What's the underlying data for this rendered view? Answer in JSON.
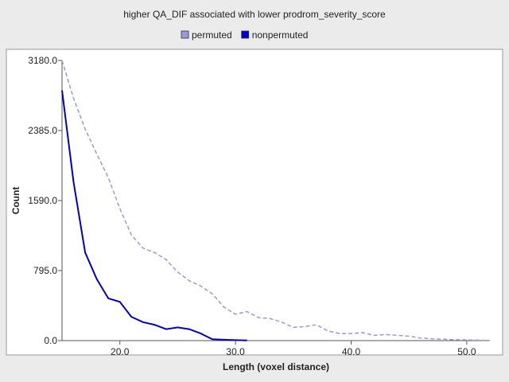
{
  "chart_data": {
    "type": "line",
    "title": "higher QA_DIF associated with lower prodrom_severity_score",
    "xlabel": "Length (voxel distance)",
    "ylabel": "Count",
    "xlim": [
      15,
      52
    ],
    "ylim": [
      0,
      3180
    ],
    "x_ticks": [
      20,
      30,
      40,
      50
    ],
    "x_tick_labels": [
      "20.0",
      "30.0",
      "40.0",
      "50.0"
    ],
    "y_ticks": [
      0,
      795,
      1590,
      2385,
      3180
    ],
    "y_tick_labels": [
      "0.0",
      "795.0",
      "1590.0",
      "2385.0",
      "3180.0"
    ],
    "grid": false,
    "legend_position": "top-center",
    "series": [
      {
        "name": "permuted",
        "color": "#9999dd",
        "line_style": "dashed",
        "x": [
          15,
          16,
          17,
          18,
          19,
          20,
          21,
          22,
          23,
          24,
          25,
          26,
          27,
          28,
          29,
          30,
          31,
          32,
          33,
          34,
          35,
          36,
          37,
          38,
          39,
          40,
          41,
          42,
          43,
          44,
          45,
          46,
          47,
          48,
          49,
          50,
          51,
          52
        ],
        "values": [
          3180,
          2750,
          2400,
          2120,
          1850,
          1500,
          1200,
          1050,
          1000,
          920,
          780,
          680,
          620,
          530,
          380,
          300,
          330,
          260,
          250,
          210,
          150,
          160,
          180,
          110,
          80,
          80,
          90,
          60,
          70,
          60,
          50,
          30,
          20,
          15,
          10,
          8,
          5,
          3
        ]
      },
      {
        "name": "nonpermuted",
        "color": "#0000cc",
        "line_style": "solid",
        "x": [
          15,
          16,
          17,
          18,
          19,
          20,
          21,
          22,
          23,
          24,
          25,
          26,
          27,
          28,
          29,
          30,
          31
        ],
        "values": [
          2840,
          1800,
          1000,
          700,
          480,
          440,
          270,
          210,
          180,
          130,
          150,
          130,
          80,
          15,
          10,
          5,
          3
        ]
      }
    ]
  }
}
